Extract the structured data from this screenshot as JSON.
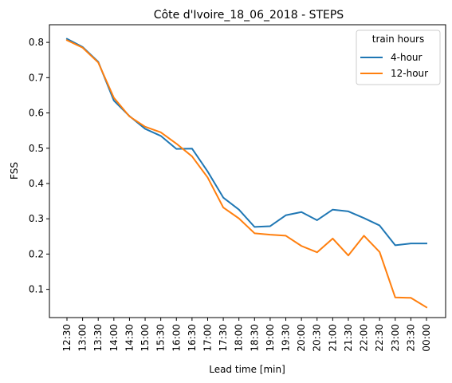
{
  "chart_data": {
    "type": "line",
    "title": "Côte d'Ivoire_18_06_2018 - STEPS",
    "xlabel": "Lead time [min]",
    "ylabel": "FSS",
    "categories": [
      "12:30",
      "13:00",
      "13:30",
      "14:00",
      "14:30",
      "15:00",
      "15:30",
      "16:00",
      "16:30",
      "17:00",
      "17:30",
      "18:00",
      "18:30",
      "19:00",
      "19:30",
      "20:00",
      "20:30",
      "21:00",
      "21:30",
      "22:00",
      "22:30",
      "23:00",
      "23:30",
      "00:00"
    ],
    "ylim": [
      0.02,
      0.85
    ],
    "yticks": [
      "0.1",
      "0.2",
      "0.3",
      "0.4",
      "0.5",
      "0.6",
      "0.7",
      "0.8"
    ],
    "grid": false,
    "legend": {
      "title": "train hours",
      "placement": "top-right"
    },
    "series": [
      {
        "name": "4-hour",
        "color": "#1f77b4",
        "values": [
          0.81,
          0.787,
          0.745,
          0.635,
          0.591,
          0.555,
          0.535,
          0.498,
          0.499,
          0.434,
          0.36,
          0.326,
          0.277,
          0.279,
          0.31,
          0.319,
          0.296,
          0.326,
          0.321,
          0.302,
          0.281,
          0.225,
          0.23,
          0.23
        ]
      },
      {
        "name": "12-hour",
        "color": "#ff7f0e",
        "values": [
          0.806,
          0.785,
          0.743,
          0.643,
          0.59,
          0.561,
          0.545,
          0.513,
          0.477,
          0.417,
          0.332,
          0.301,
          0.259,
          0.255,
          0.252,
          0.223,
          0.205,
          0.244,
          0.196,
          0.252,
          0.206,
          0.077,
          0.076,
          0.049
        ]
      }
    ]
  }
}
